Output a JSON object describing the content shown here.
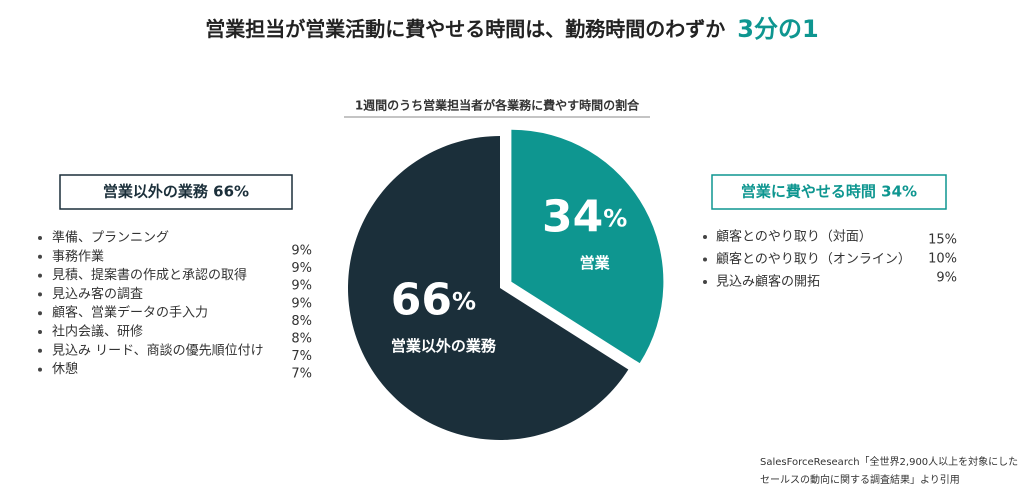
{
  "chart_data": {
    "type": "pie",
    "title": "営業担当が営業活動に費やせる時間は、勤務時間のわずか",
    "title_highlight": "3分の1",
    "subtitle": "1週間のうち営業担当者が各業務に費やす時間の割合",
    "categories": [
      "営業",
      "営業以外の業務"
    ],
    "values": [
      34,
      66
    ],
    "colors": [
      "#0e9690",
      "#1b2f3a"
    ],
    "unit": "%",
    "breakdown": [
      {
        "heading": "営業以外の業務 66%",
        "items": [
          "準備、プランニング",
          "事務作業",
          "見積、提案書の作成と承認の取得",
          "見込み客の調査",
          "顧客、営業データの手入力",
          "社内会議、研修",
          "見込み リード、商談の優先順位付け",
          "休憩"
        ],
        "values": [
          9,
          9,
          9,
          9,
          8,
          8,
          7,
          7
        ],
        "value_labels": [
          "9%",
          "9%",
          "9%",
          "9%",
          "8%",
          "8%",
          "7%",
          "7%"
        ]
      },
      {
        "heading": "営業に費やせる時間 34%",
        "items": [
          "顧客とのやり取り（対面）",
          "顧客とのやり取り（オンライン）",
          "見込み顧客の開拓"
        ],
        "values": [
          15,
          10,
          9
        ],
        "value_labels": [
          "15%",
          "10%",
          "9%"
        ]
      }
    ],
    "source": [
      "SalesForceResearch「全世界2,900人以上を対象にした",
      "セールスの動向に関する調査結果」より引用"
    ]
  }
}
